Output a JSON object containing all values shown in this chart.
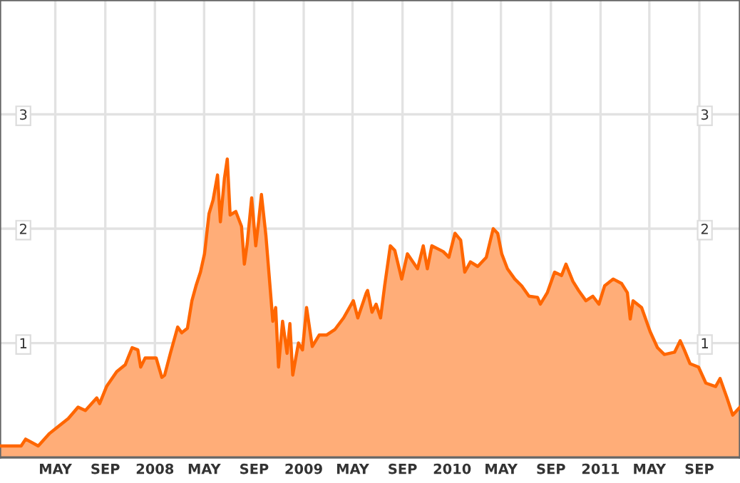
{
  "chart_data": {
    "type": "area",
    "x": [
      "2006-12-16",
      "2007-02-06",
      "2007-02-17",
      "2007-03-20",
      "2007-04-17",
      "2007-05-01",
      "2007-06-02",
      "2007-06-26",
      "2007-07-14",
      "2007-08-11",
      "2007-08-18",
      "2007-09-04",
      "2007-09-29",
      "2007-10-20",
      "2007-11-06",
      "2007-11-20",
      "2007-11-27",
      "2007-12-08",
      "2008-01-04",
      "2008-01-18",
      "2008-01-25",
      "2008-02-08",
      "2008-02-26",
      "2008-03-07",
      "2008-03-21",
      "2008-04-01",
      "2008-04-11",
      "2008-04-22",
      "2008-05-02",
      "2008-05-13",
      "2008-05-23",
      "2008-06-03",
      "2008-06-10",
      "2008-06-20",
      "2008-06-27",
      "2008-07-04",
      "2008-07-18",
      "2008-08-01",
      "2008-08-08",
      "2008-08-15",
      "2008-08-26",
      "2008-09-05",
      "2008-09-12",
      "2008-09-19",
      "2008-09-30",
      "2008-10-10",
      "2008-10-17",
      "2008-10-24",
      "2008-10-31",
      "2008-11-10",
      "2008-11-21",
      "2008-11-28",
      "2008-12-05",
      "2008-12-19",
      "2008-12-29",
      "2009-01-08",
      "2009-01-22",
      "2009-02-08",
      "2009-02-26",
      "2009-03-19",
      "2009-04-09",
      "2009-05-03",
      "2009-05-14",
      "2009-06-04",
      "2009-06-07",
      "2009-06-18",
      "2009-06-28",
      "2009-07-09",
      "2009-07-19",
      "2009-08-02",
      "2009-08-13",
      "2009-08-30",
      "2009-09-13",
      "2009-10-08",
      "2009-10-22",
      "2009-11-01",
      "2009-11-12",
      "2009-12-10",
      "2009-12-24",
      "2010-01-08",
      "2010-01-22",
      "2010-02-01",
      "2010-02-15",
      "2010-03-05",
      "2010-03-26",
      "2010-04-12",
      "2010-04-23",
      "2010-05-03",
      "2010-05-17",
      "2010-06-04",
      "2010-06-21",
      "2010-07-09",
      "2010-07-30",
      "2010-08-06",
      "2010-08-23",
      "2010-09-10",
      "2010-09-27",
      "2010-10-08",
      "2010-10-25",
      "2010-11-08",
      "2010-11-26",
      "2010-12-13",
      "2010-12-28",
      "2011-01-11",
      "2011-02-01",
      "2011-02-22",
      "2011-03-08",
      "2011-03-15",
      "2011-03-22",
      "2011-04-12",
      "2011-05-03",
      "2011-05-21",
      "2011-06-07",
      "2011-07-02",
      "2011-07-16",
      "2011-07-26",
      "2011-08-09",
      "2011-08-30",
      "2011-09-17",
      "2011-10-11",
      "2011-10-22",
      "2011-11-08",
      "2011-11-22",
      "2011-12-10"
    ],
    "series": [
      {
        "color": "#ff6600",
        "values": [
          0.1,
          0.1,
          0.16,
          0.1,
          0.21,
          0.25,
          0.34,
          0.44,
          0.41,
          0.52,
          0.47,
          0.62,
          0.75,
          0.81,
          0.96,
          0.94,
          0.79,
          0.87,
          0.87,
          0.7,
          0.72,
          0.91,
          1.14,
          1.09,
          1.13,
          1.37,
          1.5,
          1.62,
          1.78,
          2.13,
          2.25,
          2.47,
          2.06,
          2.44,
          2.61,
          2.12,
          2.15,
          2.02,
          1.69,
          1.87,
          2.27,
          1.85,
          2.06,
          2.3,
          1.94,
          1.5,
          1.19,
          1.31,
          0.79,
          1.19,
          0.91,
          1.17,
          0.72,
          1.0,
          0.94,
          1.31,
          0.97,
          1.07,
          1.07,
          1.12,
          1.22,
          1.37,
          1.22,
          1.44,
          1.46,
          1.27,
          1.34,
          1.22,
          1.5,
          1.85,
          1.81,
          1.56,
          1.78,
          1.65,
          1.85,
          1.65,
          1.85,
          1.8,
          1.75,
          1.96,
          1.9,
          1.62,
          1.71,
          1.67,
          1.75,
          2.0,
          1.96,
          1.78,
          1.65,
          1.56,
          1.5,
          1.41,
          1.4,
          1.34,
          1.44,
          1.62,
          1.59,
          1.69,
          1.54,
          1.46,
          1.37,
          1.41,
          1.34,
          1.5,
          1.56,
          1.52,
          1.44,
          1.21,
          1.37,
          1.31,
          1.1,
          0.96,
          0.9,
          0.92,
          1.02,
          0.94,
          0.82,
          0.79,
          0.65,
          0.62,
          0.69,
          0.52,
          0.37,
          0.44
        ]
      }
    ],
    "xlim": [
      "2006-12-16",
      "2011-12-10"
    ],
    "xticks": [
      {
        "value": "2007-05-01",
        "label": "MAY"
      },
      {
        "value": "2007-09-01",
        "label": "SEP"
      },
      {
        "value": "2008-01-01",
        "label": "2008"
      },
      {
        "value": "2008-05-01",
        "label": "MAY"
      },
      {
        "value": "2008-09-01",
        "label": "SEP"
      },
      {
        "value": "2009-01-01",
        "label": "2009"
      },
      {
        "value": "2009-05-01",
        "label": "MAY"
      },
      {
        "value": "2009-09-01",
        "label": "SEP"
      },
      {
        "value": "2010-01-01",
        "label": "2010"
      },
      {
        "value": "2010-05-01",
        "label": "MAY"
      },
      {
        "value": "2010-09-01",
        "label": "SEP"
      },
      {
        "value": "2011-01-01",
        "label": "2011"
      },
      {
        "value": "2011-05-01",
        "label": "MAY"
      },
      {
        "value": "2011-09-01",
        "label": "SEP"
      }
    ],
    "ylim": [
      0,
      4
    ],
    "yticks": [
      1,
      2,
      3
    ],
    "y2lim": [
      0,
      4
    ],
    "y2ticks": [
      1,
      2,
      3
    ],
    "grid": true,
    "legend": false,
    "marker": "none",
    "line_style": "solid"
  }
}
